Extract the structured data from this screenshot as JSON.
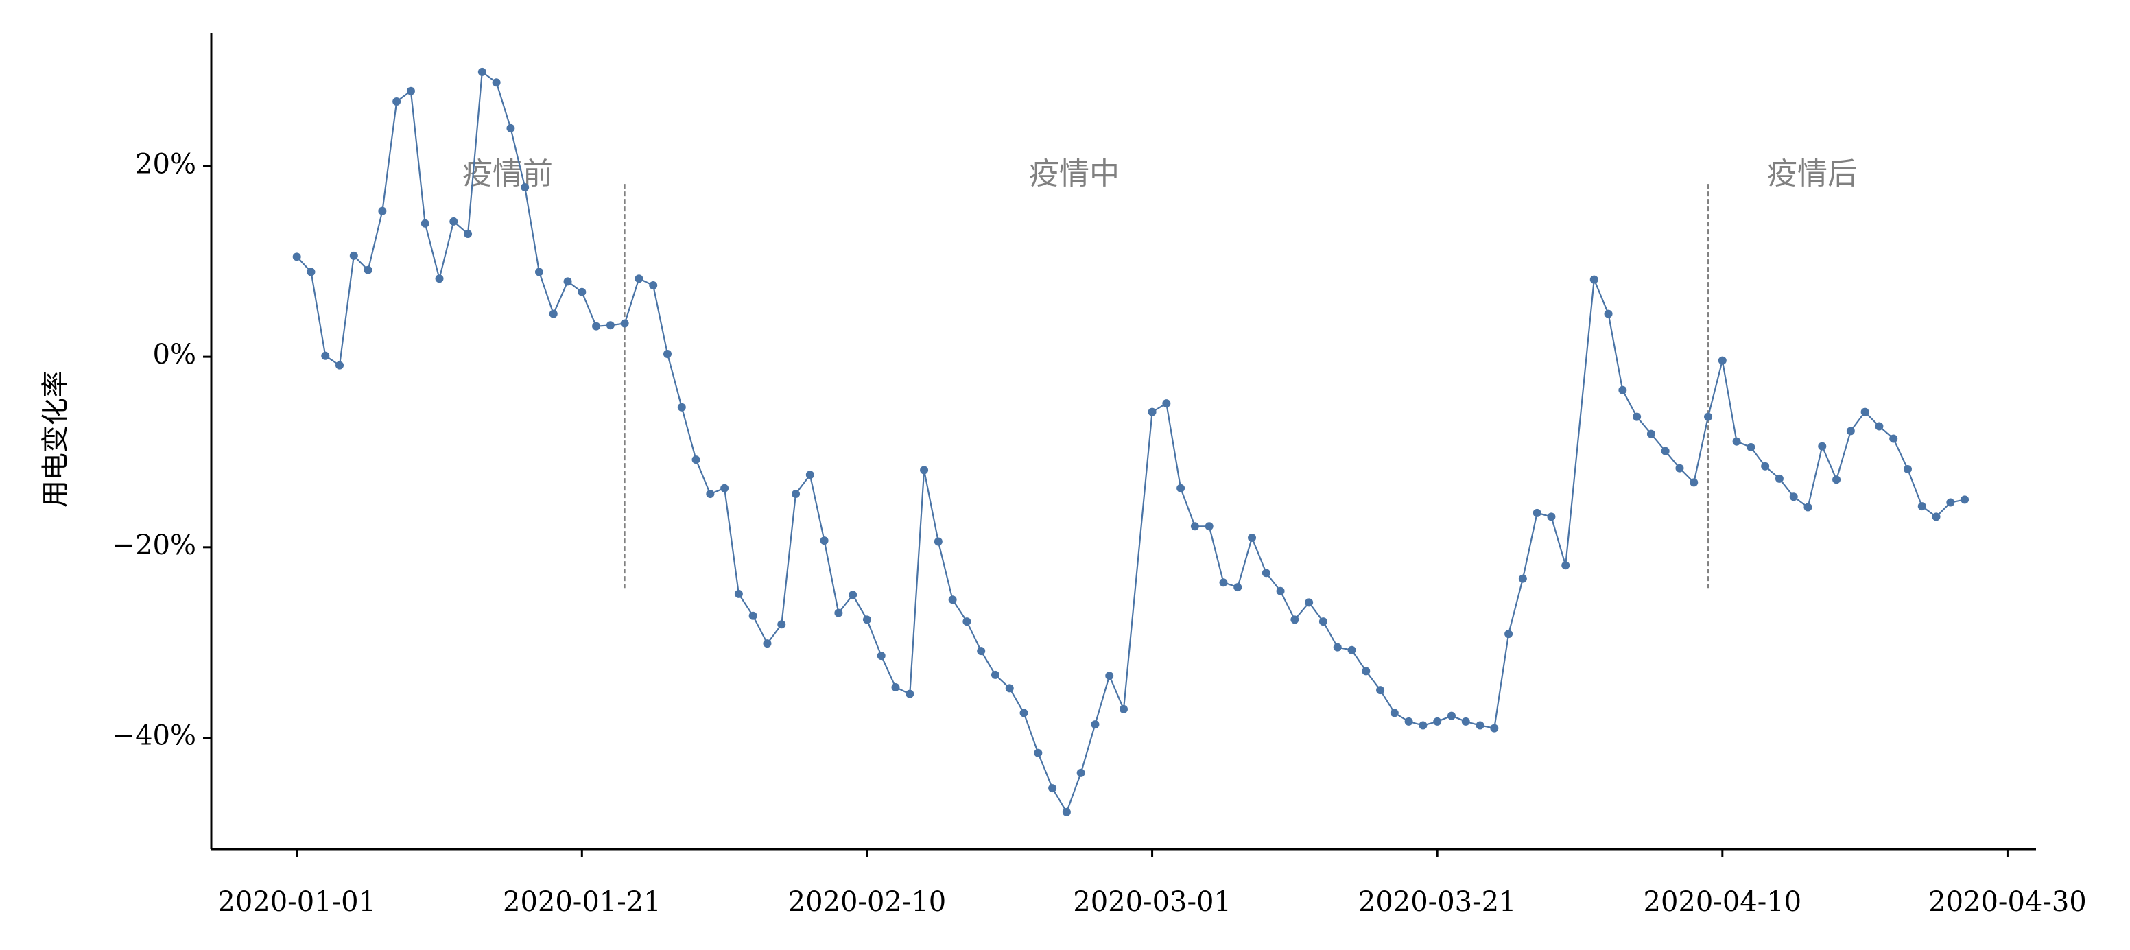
{
  "chart_data": {
    "type": "line",
    "y_label": "用电变化率",
    "color": "#4a74a6",
    "x": [
      "2020-01-01",
      "2020-01-02",
      "2020-01-03",
      "2020-01-04",
      "2020-01-05",
      "2020-01-06",
      "2020-01-07",
      "2020-01-08",
      "2020-01-09",
      "2020-01-10",
      "2020-01-11",
      "2020-01-12",
      "2020-01-13",
      "2020-01-14",
      "2020-01-15",
      "2020-01-16",
      "2020-01-17",
      "2020-01-18",
      "2020-01-19",
      "2020-01-20",
      "2020-01-21",
      "2020-01-22",
      "2020-01-23",
      "2020-01-24",
      "2020-01-25",
      "2020-01-26",
      "2020-01-27",
      "2020-01-28",
      "2020-01-29",
      "2020-01-30",
      "2020-01-31",
      "2020-02-01",
      "2020-02-02",
      "2020-02-03",
      "2020-02-04",
      "2020-02-05",
      "2020-02-06",
      "2020-02-07",
      "2020-02-08",
      "2020-02-09",
      "2020-02-10",
      "2020-02-11",
      "2020-02-12",
      "2020-02-13",
      "2020-02-14",
      "2020-02-15",
      "2020-02-16",
      "2020-02-17",
      "2020-02-18",
      "2020-02-19",
      "2020-02-20",
      "2020-02-21",
      "2020-02-22",
      "2020-02-23",
      "2020-02-24",
      "2020-02-25",
      "2020-02-26",
      "2020-02-27",
      "2020-02-28",
      "2020-03-01",
      "2020-03-02",
      "2020-03-03",
      "2020-03-04",
      "2020-03-05",
      "2020-03-06",
      "2020-03-07",
      "2020-03-08",
      "2020-03-09",
      "2020-03-10",
      "2020-03-11",
      "2020-03-12",
      "2020-03-13",
      "2020-03-14",
      "2020-03-15",
      "2020-03-16",
      "2020-03-17",
      "2020-03-18",
      "2020-03-19",
      "2020-03-20",
      "2020-03-21",
      "2020-03-22",
      "2020-03-23",
      "2020-03-24",
      "2020-03-25",
      "2020-03-26",
      "2020-03-27",
      "2020-03-28",
      "2020-03-29",
      "2020-03-30",
      "2020-04-01",
      "2020-04-02",
      "2020-04-03",
      "2020-04-04",
      "2020-04-05",
      "2020-04-06",
      "2020-04-07",
      "2020-04-08",
      "2020-04-09",
      "2020-04-10",
      "2020-04-11",
      "2020-04-12",
      "2020-04-13",
      "2020-04-14",
      "2020-04-15",
      "2020-04-16",
      "2020-04-17",
      "2020-04-18",
      "2020-04-19",
      "2020-04-20",
      "2020-04-21",
      "2020-04-22",
      "2020-04-23",
      "2020-04-24",
      "2020-04-25",
      "2020-04-26",
      "2020-04-27"
    ],
    "values": [
      10.5,
      8.9,
      0.1,
      -0.9,
      10.6,
      9.1,
      15.3,
      26.8,
      27.9,
      14.0,
      8.2,
      14.2,
      12.9,
      29.9,
      28.8,
      24.0,
      17.8,
      8.9,
      4.5,
      7.9,
      6.8,
      3.2,
      3.3,
      3.5,
      8.2,
      7.5,
      0.3,
      -5.3,
      -10.8,
      -14.4,
      -13.8,
      -24.9,
      -27.2,
      -30.1,
      -28.1,
      -14.4,
      -12.4,
      -19.3,
      -26.9,
      -25.0,
      -27.6,
      -31.4,
      -34.7,
      -35.4,
      -11.9,
      -19.4,
      -25.5,
      -27.8,
      -30.9,
      -33.4,
      -34.8,
      -37.4,
      -41.6,
      -45.3,
      -47.8,
      -43.7,
      -38.6,
      -33.5,
      -37.0,
      -5.8,
      -4.9,
      -13.8,
      -17.8,
      -17.8,
      -23.7,
      -24.2,
      -19.0,
      -22.7,
      -24.6,
      -27.6,
      -25.8,
      -27.8,
      -30.5,
      -30.8,
      -33.0,
      -35.0,
      -37.4,
      -38.3,
      -38.7,
      -38.3,
      -37.7,
      -38.3,
      -38.7,
      -39.0,
      -29.1,
      -23.3,
      -16.4,
      -16.8,
      -21.9,
      8.1,
      4.5,
      -3.5,
      -6.3,
      -8.1,
      -9.9,
      -11.7,
      -13.2,
      -6.3,
      -0.4,
      -8.9,
      -9.5,
      -11.5,
      -12.8,
      -14.7,
      -15.8,
      -9.4,
      -12.9,
      -7.8,
      -5.8,
      -7.3,
      -8.6,
      -11.8,
      -15.7,
      -16.8,
      -15.3,
      -15.0
    ],
    "xlim": [
      "2019-12-26",
      "2020-05-02"
    ],
    "xticks": [
      "2020-01-01",
      "2020-01-21",
      "2020-02-10",
      "2020-03-01",
      "2020-03-21",
      "2020-04-10",
      "2020-04-30"
    ],
    "ylim": [
      -51.7,
      34.0
    ],
    "yticks": [
      {
        "value": -40,
        "label": "−40%"
      },
      {
        "value": -20,
        "label": "−20%"
      },
      {
        "value": 0,
        "label": "0%"
      },
      {
        "value": 20,
        "label": "20%"
      }
    ],
    "vlines": [
      "2020-01-24",
      "2020-04-09"
    ],
    "annotations": [
      "疫情前",
      "疫情中",
      "疫情后"
    ]
  }
}
